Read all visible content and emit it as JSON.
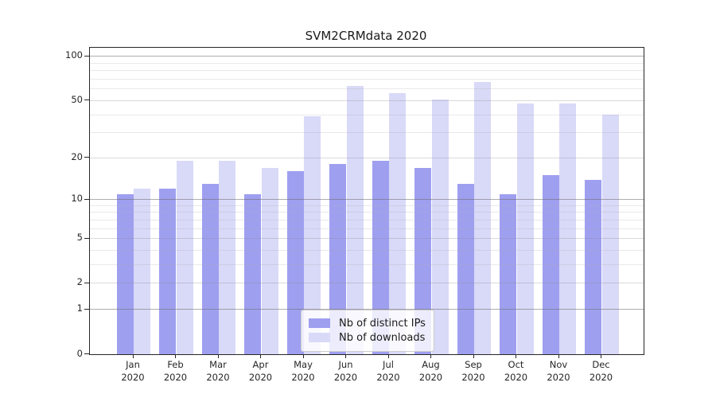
{
  "title": "SVM2CRMdata 2020",
  "chart_data": {
    "type": "bar",
    "title": "SVM2CRMdata 2020",
    "months": [
      "Jan",
      "Feb",
      "Mar",
      "Apr",
      "May",
      "Jun",
      "Jul",
      "Aug",
      "Sep",
      "Oct",
      "Nov",
      "Dec"
    ],
    "year": "2020",
    "series": [
      {
        "key": "distinct-ips",
        "name": "Nb of distinct IPs",
        "color": "#9f9ff0",
        "values": [
          11,
          12,
          13,
          11,
          16,
          18,
          19,
          17,
          13,
          11,
          15,
          14
        ]
      },
      {
        "key": "downloads",
        "name": "Nb of downloads",
        "color": "#d9d9f8",
        "values": [
          12,
          19,
          19,
          17,
          39,
          63,
          56,
          51,
          67,
          48,
          48,
          40
        ]
      }
    ],
    "yscale": "log1p",
    "ylim": [
      0,
      115
    ],
    "y_major_ticks": [
      0,
      1,
      2,
      5,
      10,
      20,
      50,
      100
    ],
    "y_minor_gridlines": [
      3,
      4,
      6,
      7,
      8,
      9,
      30,
      40,
      60,
      70,
      80,
      90
    ],
    "grid": "both",
    "legend_position": "lower center"
  }
}
